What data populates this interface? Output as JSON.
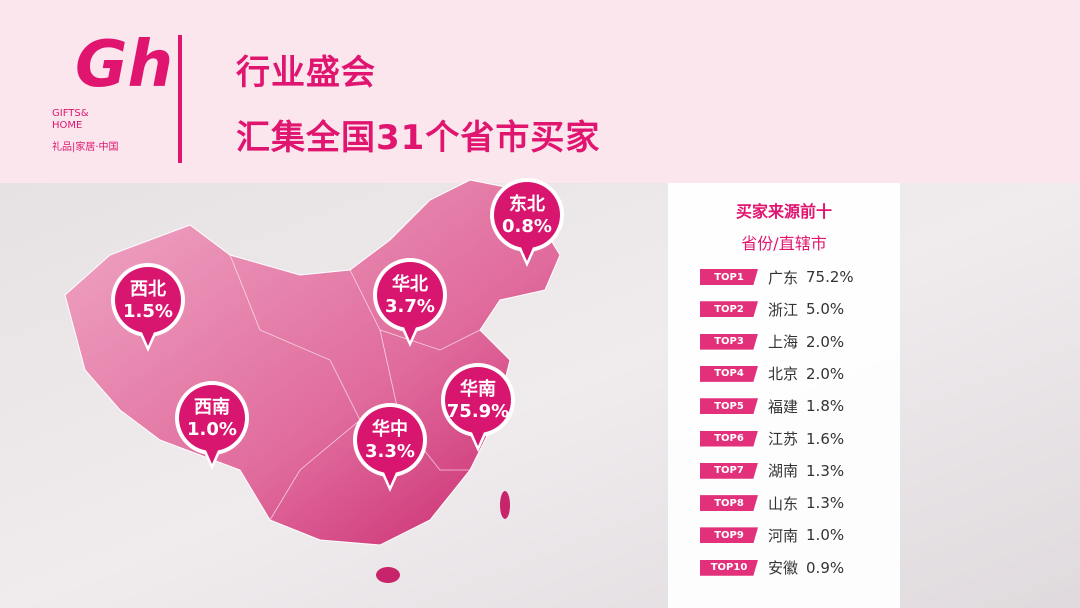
{
  "logo": {
    "mark": "Gh",
    "name": "GIFTS& HOME",
    "tagline": "礼品|家居·中国"
  },
  "header": {
    "line1": "行业盛会",
    "line2": "汇集全国31个省市买家"
  },
  "map": {
    "regions": [
      {
        "name": "东北",
        "value": "0.8%"
      },
      {
        "name": "西北",
        "value": "1.5%"
      },
      {
        "name": "华北",
        "value": "3.7%"
      },
      {
        "name": "西南",
        "value": "1.0%"
      },
      {
        "name": "华中",
        "value": "3.3%"
      },
      {
        "name": "华南",
        "value": "75.9%"
      }
    ]
  },
  "ranking": {
    "title": "买家来源前十",
    "subtitle": "省份/直辖市",
    "rows": [
      [
        "TOP1",
        "广东",
        "75.2%"
      ],
      [
        "TOP2",
        "浙江",
        "5.0%"
      ],
      [
        "TOP3",
        "上海",
        "2.0%"
      ],
      [
        "TOP4",
        "北京",
        "2.0%"
      ],
      [
        "TOP5",
        "福建",
        "1.8%"
      ],
      [
        "TOP6",
        "江苏",
        "1.6%"
      ],
      [
        "TOP7",
        "湖南",
        "1.3%"
      ],
      [
        "TOP8",
        "山东",
        "1.3%"
      ],
      [
        "TOP9",
        "河南",
        "1.0%"
      ],
      [
        "TOP10",
        "安徽",
        "0.9%"
      ]
    ]
  }
}
